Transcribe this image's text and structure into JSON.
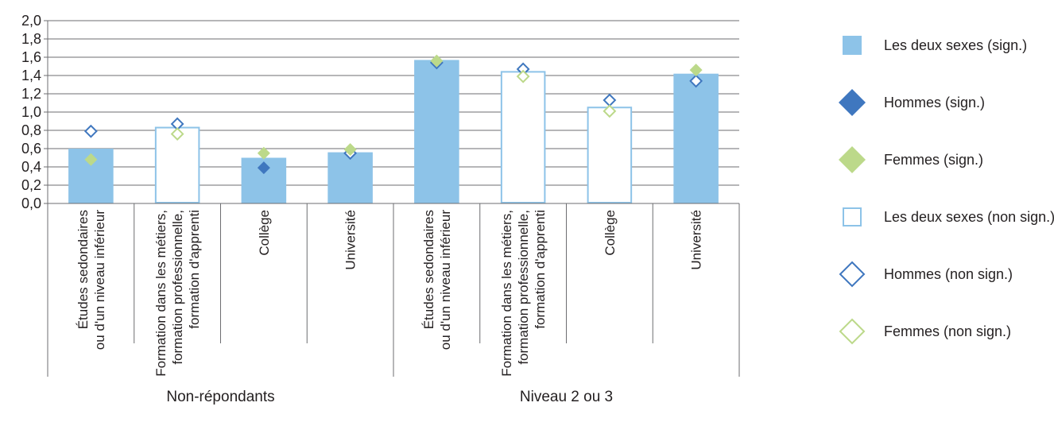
{
  "chart_data": {
    "type": "bar",
    "ylim": [
      0,
      2.0
    ],
    "yticks": [
      "0,0",
      "0,2",
      "0,4",
      "0,6",
      "0,8",
      "1,0",
      "1,2",
      "1,4",
      "1,6",
      "1,8",
      "2,0"
    ],
    "grid": true,
    "legend_position": "right",
    "groups": [
      {
        "name": "Non-répondants",
        "categories": [
          [
            "Études sedondaires",
            "ou d'un niveau inférieur"
          ],
          [
            "Formation dans les métiers,",
            "formation professionnelle,",
            "formation d'apprenti"
          ],
          [
            "Collège"
          ],
          [
            "Université"
          ]
        ]
      },
      {
        "name": "Niveau 2 ou 3",
        "categories": [
          [
            "Études sedondaires",
            "ou d'un niveau inférieur"
          ],
          [
            "Formation dans les métiers,",
            "formation professionnelle,",
            "formation d'apprenti"
          ],
          [
            "Collège"
          ],
          [
            "Université"
          ]
        ]
      }
    ],
    "series": [
      {
        "name_sig": "Les deux sexes (sign.)",
        "name_nonsig": "Les deux sexes (non sign.)",
        "kind": "bar",
        "values": [
          0.6,
          0.83,
          0.5,
          0.56,
          1.57,
          1.44,
          1.05,
          1.42
        ],
        "significant": [
          true,
          false,
          true,
          true,
          true,
          false,
          false,
          true
        ]
      },
      {
        "name_sig": "Hommes (sign.)",
        "name_nonsig": "Hommes (non sign.)",
        "kind": "diamond",
        "values": [
          0.79,
          0.87,
          0.39,
          0.55,
          1.54,
          1.47,
          1.13,
          1.34
        ],
        "significant": [
          false,
          false,
          true,
          false,
          false,
          false,
          false,
          false
        ]
      },
      {
        "name_sig": "Femmes (sign.)",
        "name_nonsig": "Femmes (non sign.)",
        "kind": "diamond",
        "values": [
          0.48,
          0.76,
          0.55,
          0.59,
          1.56,
          1.39,
          1.01,
          1.46
        ],
        "significant": [
          true,
          false,
          true,
          true,
          true,
          false,
          false,
          true
        ]
      }
    ],
    "legend": [
      {
        "label": "Les deux sexes (sign.)",
        "marker": "square",
        "filled": true,
        "color": "#8dc3e8"
      },
      {
        "label": "Hommes (sign.)",
        "marker": "diamond",
        "filled": true,
        "color": "#3f77bf"
      },
      {
        "label": "Femmes (sign.)",
        "marker": "diamond",
        "filled": true,
        "color": "#bcd98a"
      },
      {
        "label": "Les deux sexes (non sign.)",
        "marker": "square",
        "filled": false,
        "color": "#8dc3e8"
      },
      {
        "label": "Hommes (non sign.)",
        "marker": "diamond",
        "filled": false,
        "color": "#3f77bf"
      },
      {
        "label": "Femmes (non sign.)",
        "marker": "diamond",
        "filled": false,
        "color": "#bcd98a"
      }
    ],
    "colors": {
      "bars": "#8dc3e8",
      "hommes": "#3f77bf",
      "femmes": "#bcd98a",
      "axis": "#6d6e71",
      "text": "#231f20"
    }
  }
}
